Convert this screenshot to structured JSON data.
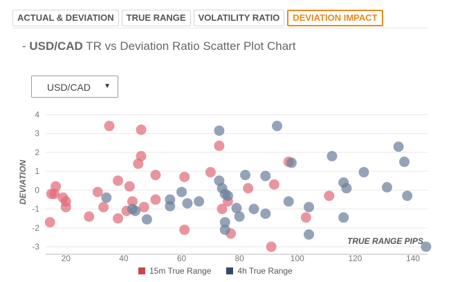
{
  "tabs": [
    {
      "label": "ACTUAL & DEVIATION"
    },
    {
      "label": "TRUE RANGE"
    },
    {
      "label": "VOLATILITY RATIO"
    },
    {
      "label": "DEVIATION IMPACT",
      "active": true
    }
  ],
  "header": {
    "dash": "- ",
    "pair": "USD/CAD",
    "title": " TR vs Deviation Ratio Scatter Plot Chart"
  },
  "selector": {
    "value": "USD/CAD",
    "caret": "▼"
  },
  "legend": [
    {
      "label": "15m True Range",
      "color": "#c8464e"
    },
    {
      "label": "4h True Range",
      "color": "#344a6b"
    }
  ],
  "chart_data": {
    "type": "scatter",
    "xlabel": "TRUE RANGE PIPS",
    "ylabel": "DEVIATION",
    "xlim": [
      13,
      145
    ],
    "ylim": [
      -3.4,
      4.2
    ],
    "xticks": [
      20,
      40,
      60,
      80,
      100,
      120,
      140
    ],
    "yticks": [
      4,
      3,
      2,
      1,
      0,
      -1,
      -2,
      -3
    ],
    "grid": {
      "x": false,
      "y": true
    },
    "legend_position": "bottom-center",
    "series": [
      {
        "name": "15m True Range",
        "color": "#e06c7a",
        "points": [
          [
            14.5,
            -1.7
          ],
          [
            15,
            -0.2
          ],
          [
            16,
            -0.2
          ],
          [
            16.5,
            0.2
          ],
          [
            19,
            -0.4
          ],
          [
            20,
            -0.6
          ],
          [
            20,
            -0.9
          ],
          [
            28,
            -1.4
          ],
          [
            31,
            -0.1
          ],
          [
            33,
            -0.9
          ],
          [
            35,
            3.4
          ],
          [
            38,
            0.5
          ],
          [
            38,
            -1.5
          ],
          [
            41,
            -1.1
          ],
          [
            42,
            0.2
          ],
          [
            43,
            -0.6
          ],
          [
            45,
            1.4
          ],
          [
            46,
            3.2
          ],
          [
            46,
            1.8
          ],
          [
            47,
            -0.9
          ],
          [
            51,
            0.8
          ],
          [
            51,
            -0.5
          ],
          [
            61,
            0.7
          ],
          [
            61,
            -2.1
          ],
          [
            70,
            0.95
          ],
          [
            73,
            2.35
          ],
          [
            74,
            -1.0
          ],
          [
            76,
            -0.6
          ],
          [
            77,
            -2.3
          ],
          [
            83,
            0.1
          ],
          [
            91,
            -3.0
          ],
          [
            92,
            0.3
          ],
          [
            97,
            1.5
          ],
          [
            103,
            -1.45
          ],
          [
            111,
            -0.3
          ]
        ]
      },
      {
        "name": "4h True Range",
        "color": "#6c7f9c",
        "points": [
          [
            34,
            -0.4
          ],
          [
            43,
            -1.0
          ],
          [
            44,
            -1.1
          ],
          [
            48,
            -1.55
          ],
          [
            56,
            -0.5
          ],
          [
            56,
            -0.85
          ],
          [
            60,
            -0.1
          ],
          [
            62,
            -0.7
          ],
          [
            66,
            -0.6
          ],
          [
            73,
            3.15
          ],
          [
            73,
            0.5
          ],
          [
            74,
            0.1
          ],
          [
            75,
            -0.2
          ],
          [
            75,
            -1.7
          ],
          [
            75,
            -2.1
          ],
          [
            76,
            -0.3
          ],
          [
            79,
            -0.95
          ],
          [
            80,
            -1.4
          ],
          [
            82,
            0.8
          ],
          [
            85,
            -1.0
          ],
          [
            89,
            0.75
          ],
          [
            89,
            -1.25
          ],
          [
            93,
            3.4
          ],
          [
            97,
            -0.6
          ],
          [
            98,
            1.45
          ],
          [
            104,
            -0.9
          ],
          [
            104,
            -2.35
          ],
          [
            112,
            1.8
          ],
          [
            116,
            0.4
          ],
          [
            116,
            -1.45
          ],
          [
            117,
            0.1
          ],
          [
            123,
            0.95
          ],
          [
            131,
            0.15
          ],
          [
            135,
            2.3
          ],
          [
            137,
            1.5
          ],
          [
            138,
            -0.3
          ],
          [
            144.5,
            -3.0
          ]
        ]
      }
    ]
  }
}
